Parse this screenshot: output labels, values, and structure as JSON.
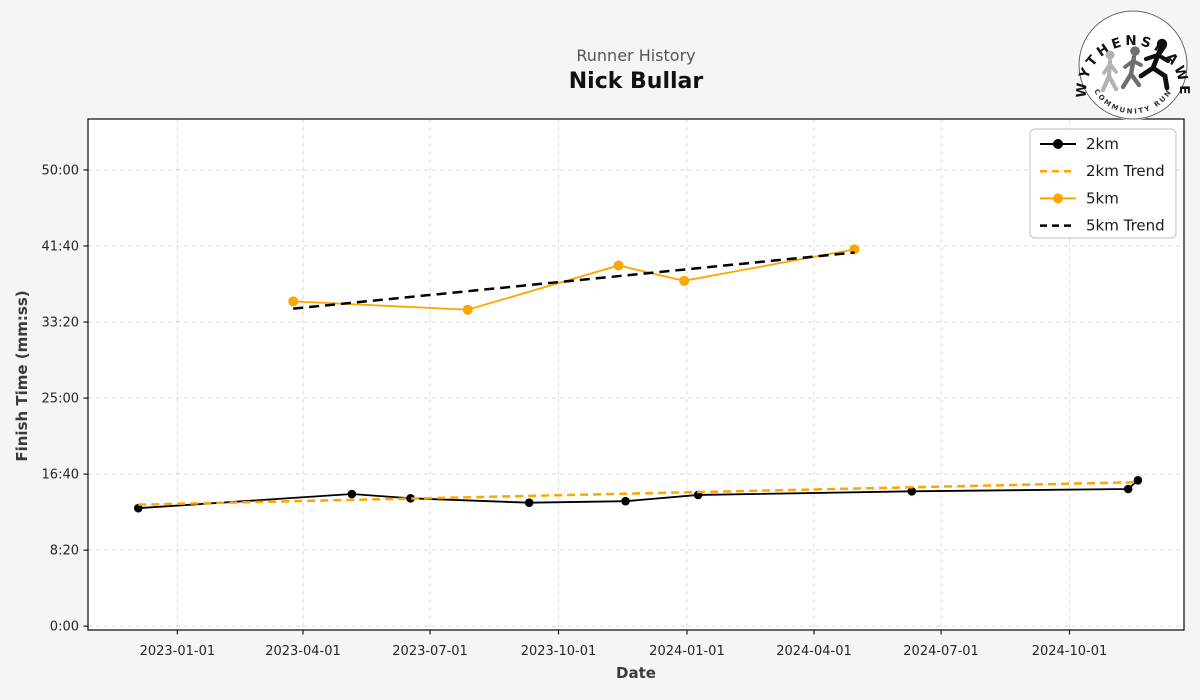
{
  "header": {
    "subtitle": "Runner History",
    "title": "Nick Bullar"
  },
  "logo": {
    "top_text": "WYTHENSHAWE",
    "bottom_text": "COMMUNITY RUN"
  },
  "chart_data": {
    "type": "line",
    "title": "Runner History",
    "subtitle": "Nick Bullar",
    "xlabel": "Date",
    "ylabel": "Finish Time (mm:ss)",
    "grid": true,
    "legend_position": "upper right",
    "colors": {
      "orange": "#FFA500",
      "black": "#000000",
      "grid": "#d9d9d9",
      "spine": "#1a1a1a",
      "tick_text": "#262626"
    },
    "xlim": [
      "2022-10-29",
      "2024-12-22"
    ],
    "ylim_seconds": [
      -25,
      3335
    ],
    "x_ticks": [
      "2023-01-01",
      "2023-04-01",
      "2023-07-01",
      "2023-10-01",
      "2024-01-01",
      "2024-04-01",
      "2024-07-01",
      "2024-10-01"
    ],
    "y_ticks": [
      "0:00",
      "8:20",
      "16:40",
      "25:00",
      "33:20",
      "41:40",
      "50:00"
    ],
    "series": [
      {
        "name": "2km",
        "color": "#000000",
        "style": "solid",
        "marker": true,
        "marker_r": 4.3,
        "width": 1.8,
        "points": [
          {
            "date": "2022-12-04",
            "time": "12:56"
          },
          {
            "date": "2023-05-06",
            "time": "14:29"
          },
          {
            "date": "2023-06-17",
            "time": "14:01"
          },
          {
            "date": "2023-09-10",
            "time": "13:32"
          },
          {
            "date": "2023-11-18",
            "time": "13:42"
          },
          {
            "date": "2024-01-09",
            "time": "14:23"
          },
          {
            "date": "2024-06-10",
            "time": "14:47"
          },
          {
            "date": "2024-11-12",
            "time": "15:02"
          },
          {
            "date": "2024-11-19",
            "time": "15:59"
          }
        ]
      },
      {
        "name": "2km Trend",
        "color": "#FFA500",
        "style": "dashed",
        "marker": false,
        "width": 2.5,
        "dash": "8 5",
        "points": [
          {
            "date": "2022-12-04",
            "time": "13:19"
          },
          {
            "date": "2024-11-19",
            "time": "15:47"
          }
        ]
      },
      {
        "name": "5km",
        "color": "#FFA500",
        "style": "solid",
        "marker": true,
        "marker_r": 5,
        "width": 1.8,
        "points": [
          {
            "date": "2023-03-25",
            "time": "35:36"
          },
          {
            "date": "2023-07-28",
            "time": "34:41"
          },
          {
            "date": "2023-11-13",
            "time": "39:32"
          },
          {
            "date": "2023-12-30",
            "time": "37:51"
          },
          {
            "date": "2024-04-30",
            "time": "41:18"
          }
        ]
      },
      {
        "name": "5km Trend",
        "color": "#000000",
        "style": "dashed",
        "marker": false,
        "width": 2.5,
        "dash": "10 6",
        "points": [
          {
            "date": "2023-03-25",
            "time": "34:48"
          },
          {
            "date": "2024-04-30",
            "time": "40:57"
          }
        ]
      }
    ],
    "legend": [
      "2km",
      "2km Trend",
      "5km",
      "5km Trend"
    ]
  }
}
